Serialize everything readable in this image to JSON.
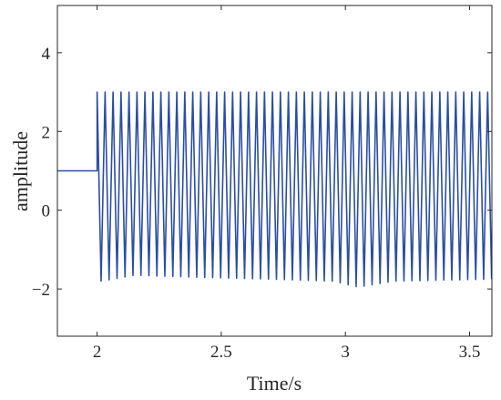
{
  "chart_data": {
    "type": "line",
    "title": "",
    "xlabel": "Time/s",
    "ylabel": "amplitude",
    "xlim": [
      1.84,
      3.59
    ],
    "ylim": [
      -3.2,
      5.2
    ],
    "x_ticks": [
      2,
      2.5,
      3,
      3.5
    ],
    "x_tick_labels": [
      "2",
      "2.5",
      "3",
      "3.5"
    ],
    "y_ticks": [
      -2,
      0,
      2,
      4
    ],
    "y_tick_labels": [
      "−2",
      "0",
      "2",
      "4"
    ],
    "grid": false,
    "colors": {
      "line": "#2b4ea3",
      "axes": "#262626"
    },
    "series": [
      {
        "description_of_shape": "constant level then periodic oscillation between a peak of 3 and a trough near -1.75",
        "initial_level": 1.0,
        "step_time": 2.0,
        "oscillation": {
          "start": 2.0,
          "end": 3.59,
          "period": 0.0321,
          "peak": 3.0,
          "trough_points": [
            [
              2.02,
              -1.8
            ],
            [
              2.15,
              -1.65
            ],
            [
              2.4,
              -1.7
            ],
            [
              2.7,
              -1.75
            ],
            [
              2.95,
              -1.8
            ],
            [
              3.05,
              -1.95
            ],
            [
              3.2,
              -1.8
            ],
            [
              3.59,
              -1.75
            ]
          ]
        }
      }
    ]
  }
}
